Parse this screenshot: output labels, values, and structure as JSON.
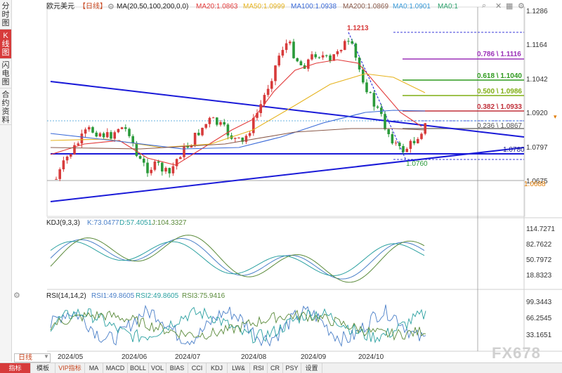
{
  "left_rail": [
    {
      "label": "分时图",
      "active": false
    },
    {
      "label": "K线图",
      "active": true
    },
    {
      "label": "闪电图",
      "active": false
    },
    {
      "label": "合约资料",
      "active": false
    }
  ],
  "header": {
    "symbol": "欧元美元",
    "period": "【日线】",
    "ma_params": "MA(20,50,100,200,0,0)",
    "ma20": "MA20:1.0863",
    "ma50": "MA50:1.0999",
    "ma100": "MA100:1.0938",
    "ma200": "MA200:1.0869",
    "ma0a": "MA0:1.0901",
    "ma0b": "MA0:1"
  },
  "price_axis": [
    "1.1286",
    "1.1164",
    "1.1042",
    "1.0920",
    "1.0797",
    "1.0675"
  ],
  "current_price_label": "1.0920",
  "support_price_label": "1.0688",
  "annotations": {
    "high": "1.1213",
    "low": "1.0760",
    "mid": "1.0780"
  },
  "fib_levels": [
    {
      "label": "0.786 \\ 1.1116",
      "color": "#9b30b8"
    },
    {
      "label": "0.618 \\ 1.1040",
      "color": "#2f9a1f"
    },
    {
      "label": "0.500 \\ 1.0986",
      "color": "#7fae12"
    },
    {
      "label": "0.382 \\ 1.0933",
      "color": "#c0303a"
    },
    {
      "label": "0.236 \\ 1.0867",
      "color": "#555555"
    }
  ],
  "kdj": {
    "title": "KDJ(9,3,3)",
    "k": "K:73.0477",
    "d": "D:57.4051",
    "j": "J:104.3327",
    "axis": [
      "114.7271",
      "82.7622",
      "50.7972",
      "18.8323"
    ]
  },
  "rsi": {
    "title": "RSI(14,14,2)",
    "rsi1": "RSI1:49.8605",
    "rsi2": "RSI2:49.8605",
    "rsi3": "RSI3:75.9416",
    "axis": [
      "99.3443",
      "66.2545",
      "33.1651"
    ]
  },
  "dates": [
    "2024/05",
    "2024/06",
    "2024/07",
    "2024/08",
    "2024/09",
    "2024/10"
  ],
  "period_selector": "日线",
  "bottom_tabs": [
    "指标",
    "模板",
    "VIP指标",
    "MA",
    "MACD",
    "BOLL",
    "VOL",
    "BIAS",
    "CCI",
    "KDJ",
    "LW&",
    "RSI",
    "CR",
    "PSY",
    "设置"
  ],
  "watermark": "FX678",
  "colors": {
    "up": "#d73b3b",
    "down": "#2a9a3a",
    "trendline": "#1a1ad8",
    "accent": "#d73b3b"
  }
}
